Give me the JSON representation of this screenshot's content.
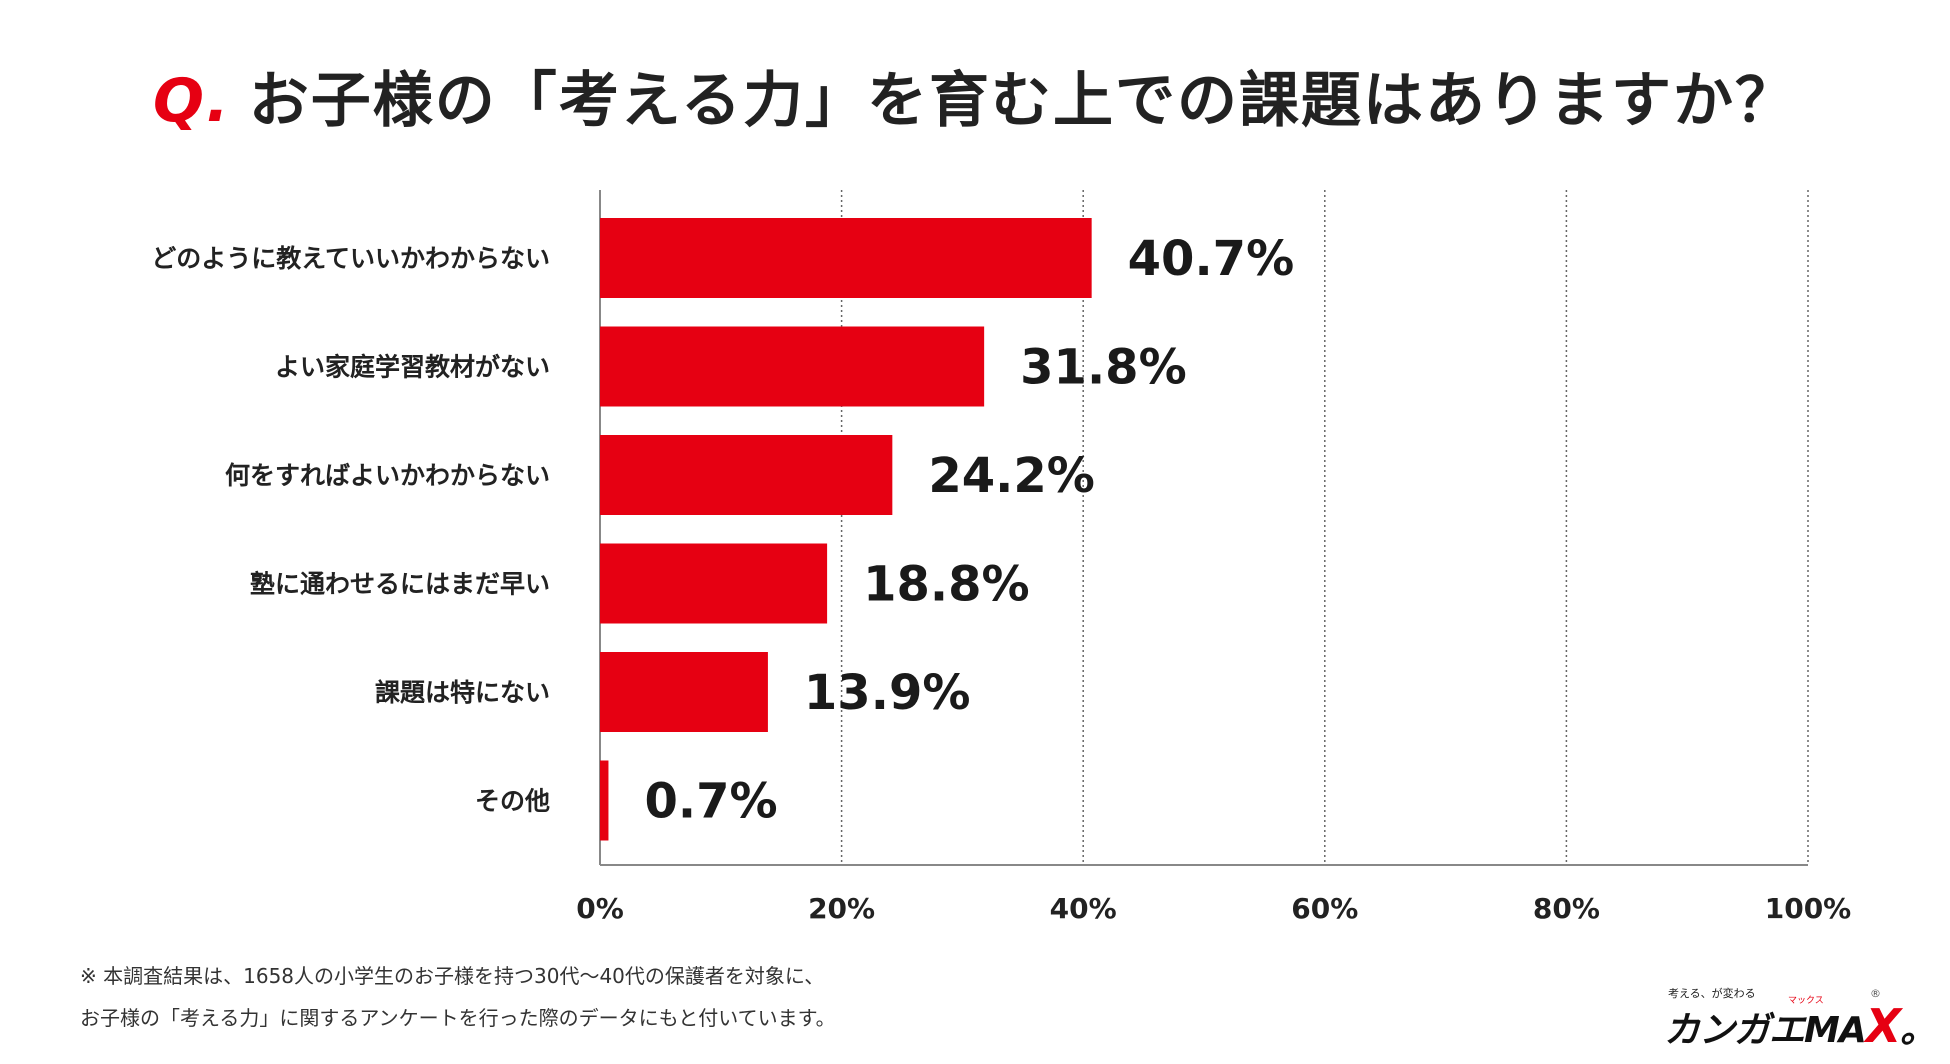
{
  "title": {
    "q_mark": "Q.",
    "text": "お子様の「考える力」を育む上での課題はありますか？"
  },
  "chart_data": {
    "type": "bar",
    "orientation": "horizontal",
    "title": "Q. お子様の「考える力」を育む上での課題はありますか？",
    "categories": [
      "どのように教えていいかわからない",
      "よい家庭学習教材がない",
      "何をすればよいかわからない",
      "塾に通わせるにはまだ早い",
      "課題は特にない",
      "その他"
    ],
    "values": [
      40.7,
      31.8,
      24.2,
      18.8,
      13.9,
      0.7
    ],
    "value_labels": [
      "40.7%",
      "31.8%",
      "24.2%",
      "18.8%",
      "13.9%",
      "0.7%"
    ],
    "highlight_index": 0,
    "xlim": [
      0,
      100
    ],
    "x_ticks": [
      0,
      20,
      40,
      60,
      80,
      100
    ],
    "x_tick_labels": [
      "0%",
      "20%",
      "40%",
      "60%",
      "80%",
      "100%"
    ],
    "grid": true,
    "grid_style": "dotted vertical",
    "bar_color": "#e60012",
    "highlight_label_color": "#e60012",
    "label_color": "#1a1a1a",
    "xlabel": "",
    "ylabel": ""
  },
  "footnote": {
    "line1": "※ 本調査結果は、1658人の小学生のお子様を持つ30代～40代の保護者を対象に、",
    "line2": "お子様の「考える力」に関するアンケートを行った際のデータにもと付いています。"
  },
  "logo": {
    "tagline": "考える、が変わる",
    "ruby": "マックス",
    "main": "カンガエMA",
    "x": "X",
    "suffix": "。",
    "registered": "®"
  }
}
